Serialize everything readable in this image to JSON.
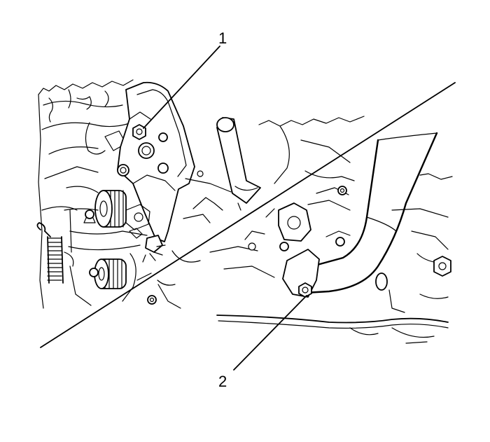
{
  "callouts": [
    {
      "id": "1",
      "label": "1"
    },
    {
      "id": "2",
      "label": "2"
    }
  ],
  "colors": {
    "ink": "#000000",
    "background": "#ffffff"
  }
}
